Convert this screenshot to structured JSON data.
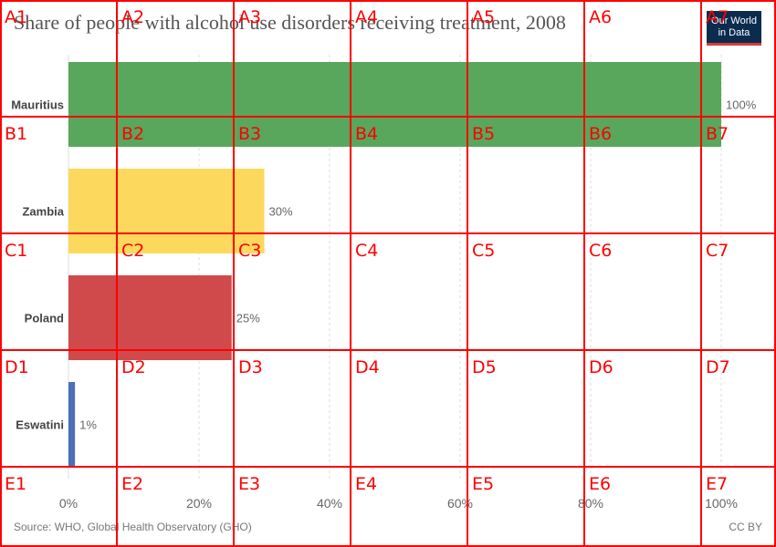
{
  "title": "Share of people with alcohol use disorders receiving treatment, 2008",
  "logo": {
    "line1": "Our World",
    "line2": "in Data"
  },
  "source": "Source: WHO, Global Health Observatory (GHO)",
  "license": "CC BY",
  "colors": {
    "bar_mauritius": "#58a75c",
    "bar_zambia": "#fcd95d",
    "bar_poland": "#d04a4c",
    "bar_eswatini": "#4b6fb8",
    "grid_red": "#ff0000",
    "logo_bg": "#0b2c4f"
  },
  "chart_data": {
    "type": "bar",
    "orientation": "horizontal",
    "categories": [
      "Mauritius",
      "Zambia",
      "Poland",
      "Eswatini"
    ],
    "values": [
      100,
      30,
      25,
      1
    ],
    "value_labels": [
      "100%",
      "30%",
      "25%",
      "1%"
    ],
    "xlim": [
      0,
      100
    ],
    "xticks": [
      0,
      20,
      40,
      60,
      80,
      100
    ],
    "xtick_labels": [
      "0%",
      "20%",
      "40%",
      "60%",
      "80%",
      "100%"
    ],
    "grid": true
  },
  "overlay_grid": {
    "rows": [
      "A",
      "B",
      "C",
      "D",
      "E"
    ],
    "cols": [
      "1",
      "2",
      "3",
      "4",
      "5",
      "6",
      "7"
    ]
  }
}
